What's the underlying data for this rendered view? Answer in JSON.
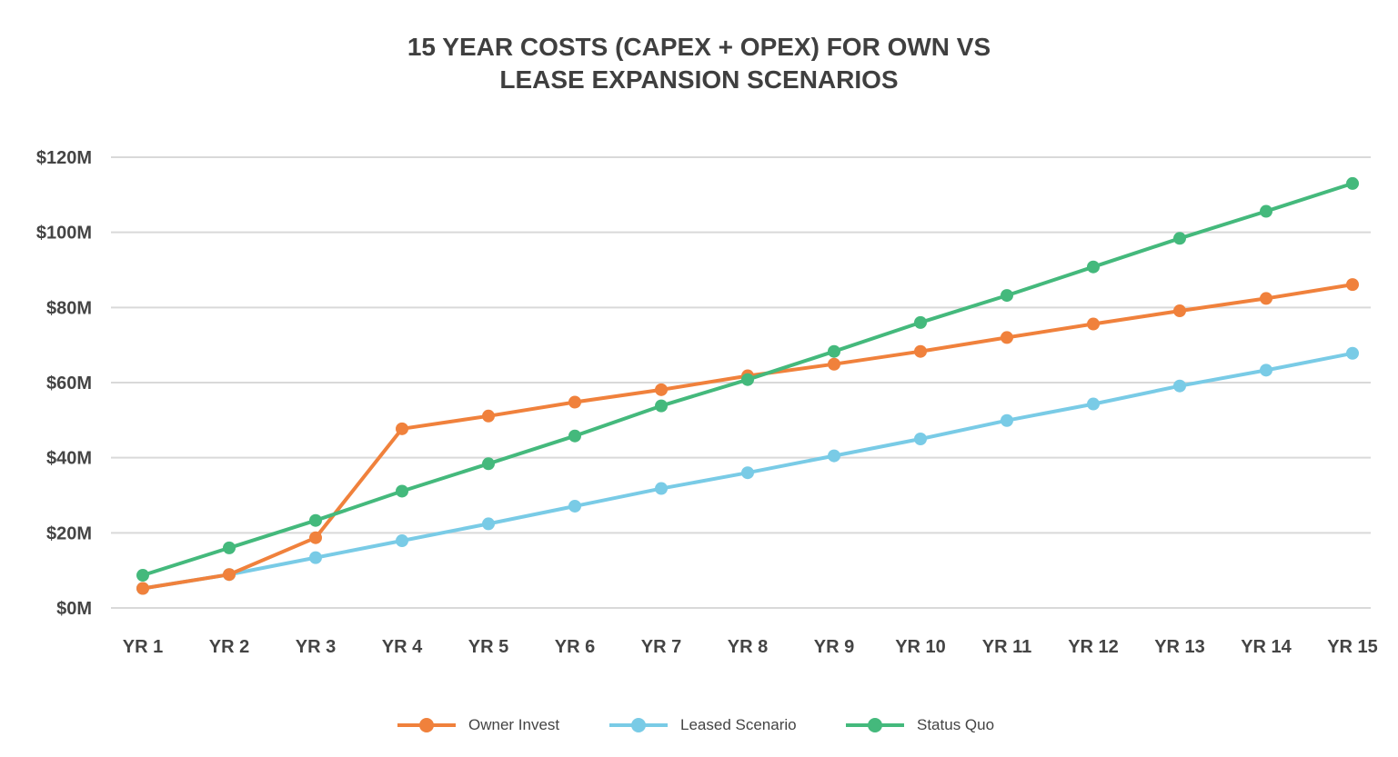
{
  "chart_data": {
    "type": "line",
    "title_lines": [
      "15 YEAR COSTS (CAPEX + OPEX) FOR OWN VS",
      "LEASE EXPANSION SCENARIOS"
    ],
    "xlabel": "",
    "ylabel": "",
    "categories": [
      "YR 1",
      "YR 2",
      "YR 3",
      "YR 4",
      "YR 5",
      "YR 6",
      "YR 7",
      "YR 8",
      "YR 9",
      "YR 10",
      "YR 11",
      "YR 12",
      "YR 13",
      "YR 14",
      "YR 15"
    ],
    "y_ticks": [
      {
        "value": 0,
        "label": "$0M"
      },
      {
        "value": 20,
        "label": "$20M"
      },
      {
        "value": 40,
        "label": "$40M"
      },
      {
        "value": 60,
        "label": "$60M"
      },
      {
        "value": 80,
        "label": "$80M"
      },
      {
        "value": 100,
        "label": "$100M"
      },
      {
        "value": 120,
        "label": "$120M"
      }
    ],
    "ylim": [
      0,
      120
    ],
    "grid": "horizontal",
    "legend_position": "bottom-center",
    "series": [
      {
        "name": "Owner Invest",
        "color": "#f0813c",
        "values": [
          5.2,
          8.9,
          18.7,
          47.7,
          51.1,
          54.8,
          58.1,
          61.8,
          64.9,
          68.3,
          72.0,
          75.6,
          79.1,
          82.4,
          86.1
        ]
      },
      {
        "name": "Leased Scenario",
        "color": "#79cbe6",
        "values": [
          5.2,
          8.9,
          13.4,
          17.9,
          22.4,
          27.1,
          31.8,
          36.0,
          40.5,
          45.0,
          49.9,
          54.3,
          59.1,
          63.3,
          67.8
        ]
      },
      {
        "name": "Status Quo",
        "color": "#44b97c",
        "values": [
          8.7,
          16.0,
          23.3,
          31.1,
          38.4,
          45.8,
          53.8,
          60.8,
          68.3,
          76.0,
          83.2,
          90.8,
          98.4,
          105.6,
          113.0
        ]
      }
    ]
  }
}
